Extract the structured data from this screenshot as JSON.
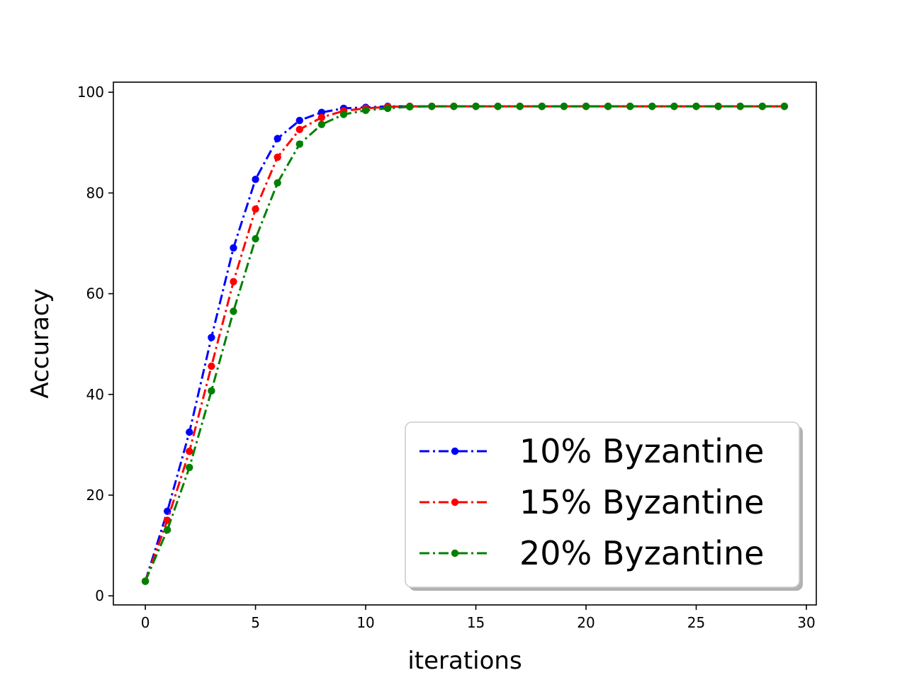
{
  "chart_data": {
    "type": "line",
    "title": "",
    "xlabel": "iterations",
    "ylabel": "Accuracy",
    "xlim": [
      -1.45,
      30.45
    ],
    "ylim": [
      -1.8,
      102.0
    ],
    "xticks": [
      0,
      5,
      10,
      15,
      20,
      25,
      30
    ],
    "yticks": [
      0,
      20,
      40,
      60,
      80,
      100
    ],
    "grid": false,
    "legend_position": "lower-right",
    "x": [
      0,
      1,
      2,
      3,
      4,
      5,
      6,
      7,
      8,
      9,
      10,
      11,
      12,
      13,
      14,
      15,
      16,
      17,
      18,
      19,
      20,
      21,
      22,
      23,
      24,
      25,
      26,
      27,
      28,
      29
    ],
    "series": [
      {
        "name": "10% Byzantine",
        "color": "#0000ff",
        "values": [
          2.9,
          16.8,
          32.5,
          51.3,
          69.1,
          82.7,
          90.8,
          94.4,
          96.0,
          96.8,
          97.0,
          97.2,
          97.2,
          97.2,
          97.2,
          97.2,
          97.2,
          97.2,
          97.2,
          97.2,
          97.2,
          97.2,
          97.2,
          97.2,
          97.2,
          97.2,
          97.2,
          97.2,
          97.2,
          97.2
        ]
      },
      {
        "name": "15% Byzantine",
        "color": "#ff0000",
        "values": [
          2.9,
          15.0,
          28.7,
          45.6,
          62.4,
          76.8,
          87.1,
          92.6,
          95.0,
          96.3,
          96.8,
          97.1,
          97.2,
          97.2,
          97.2,
          97.2,
          97.2,
          97.2,
          97.2,
          97.2,
          97.2,
          97.2,
          97.2,
          97.2,
          97.2,
          97.2,
          97.2,
          97.2,
          97.2,
          97.2
        ]
      },
      {
        "name": "20% Byzantine",
        "color": "#008000",
        "values": [
          2.9,
          13.1,
          25.5,
          40.7,
          56.5,
          70.9,
          82.0,
          89.7,
          93.6,
          95.6,
          96.4,
          96.8,
          97.1,
          97.2,
          97.2,
          97.2,
          97.2,
          97.2,
          97.2,
          97.2,
          97.2,
          97.2,
          97.2,
          97.2,
          97.2,
          97.2,
          97.2,
          97.2,
          97.2,
          97.2
        ]
      }
    ]
  }
}
